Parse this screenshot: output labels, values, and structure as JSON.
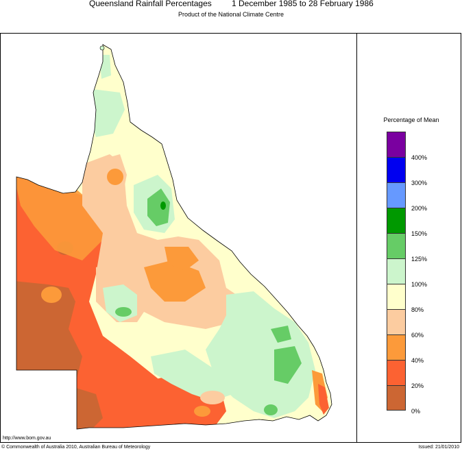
{
  "header": {
    "title": "Queensland Rainfall Percentages",
    "period": "1 December 1985 to 28 February 1986",
    "subtitle": "Product of the National Climate Centre"
  },
  "legend": {
    "title": "Percentage of Mean",
    "classes": [
      {
        "color": "#7a00a0"
      },
      {
        "color": "#0000f0"
      },
      {
        "color": "#6699ff"
      },
      {
        "color": "#009900"
      },
      {
        "color": "#66cc66"
      },
      {
        "color": "#ccf5cc"
      },
      {
        "color": "#ffffcc"
      },
      {
        "color": "#fccca0"
      },
      {
        "color": "#fc9a3a"
      },
      {
        "color": "#fc6232"
      },
      {
        "color": "#cc6633"
      }
    ],
    "labels": [
      "400%",
      "300%",
      "200%",
      "150%",
      "125%",
      "100%",
      "80%",
      "60%",
      "40%",
      "20%",
      "0%"
    ]
  },
  "footer": {
    "url": "http://www.bom.gov.au",
    "copyright": "© Commonwealth of Australia 2010, Australian Bureau of Meteorology",
    "issued": "Issued: 21/01/2010"
  }
}
